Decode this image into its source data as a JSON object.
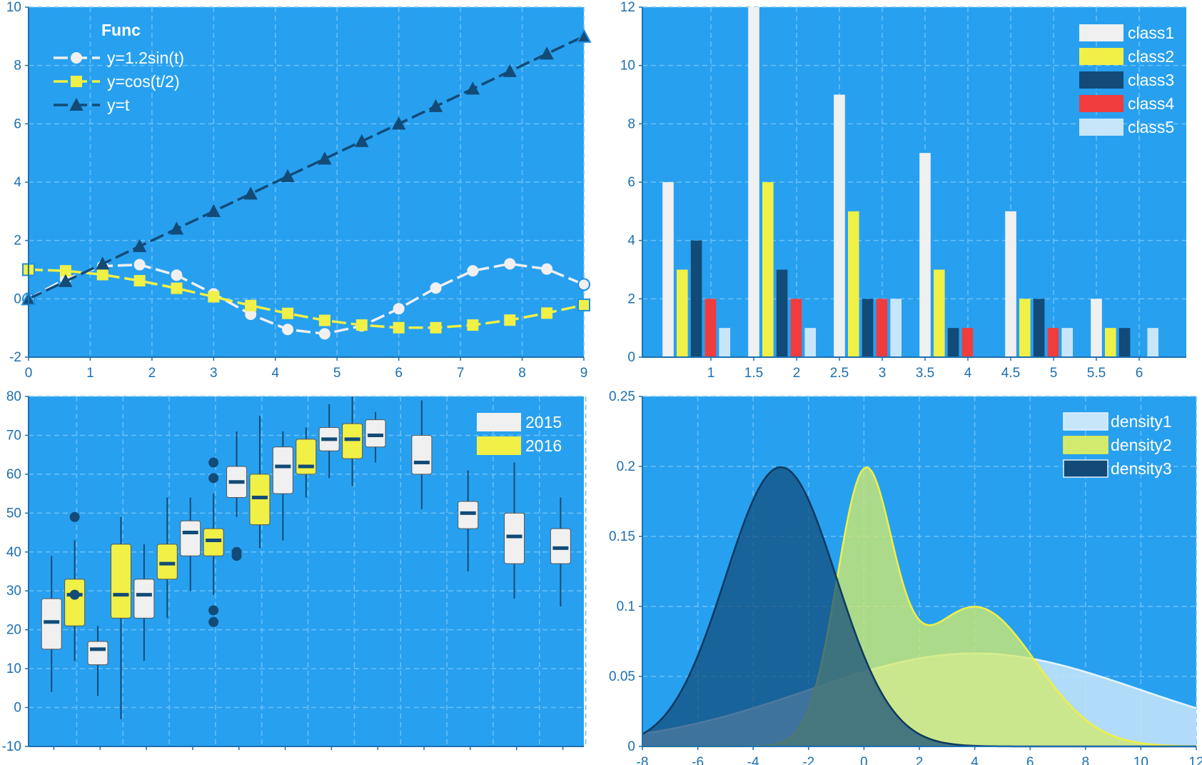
{
  "colors": {
    "panel_bg": "#28a0f0",
    "grid": "#6cc0f5",
    "axis": "#1c6fb0",
    "tick_text": "#1c6fb0",
    "white": "#f0f0f0",
    "yellow": "#f0f046",
    "navy": "#124b78",
    "red": "#f03c3c",
    "lightblue": "#c8e6fa"
  },
  "chart_data": [
    {
      "type": "line",
      "legend_title": "Func",
      "x_ticks": [
        "0",
        "1",
        "2",
        "3",
        "4",
        "5",
        "6",
        "7",
        "8",
        "9"
      ],
      "y_ticks": [
        "-2",
        "0",
        "2",
        "4",
        "6",
        "8",
        "10"
      ],
      "xlim": [
        0,
        9
      ],
      "ylim": [
        -2,
        10
      ],
      "grid": true,
      "legend_position": "top-left",
      "x": [
        0,
        0.6,
        1.2,
        1.8,
        2.4,
        3.0,
        3.6,
        4.2,
        4.8,
        5.4,
        6.0,
        6.6,
        7.2,
        7.8,
        8.4,
        9.0
      ],
      "series": [
        {
          "name": "y=1.2sin(t)",
          "color": "white",
          "marker": "circle",
          "values": [
            0,
            0.68,
            1.12,
            1.17,
            0.81,
            0.17,
            -0.53,
            -1.05,
            -1.2,
            -0.93,
            -0.34,
            0.37,
            0.96,
            1.2,
            1.02,
            0.49
          ]
        },
        {
          "name": "y=cos(t/2)",
          "color": "yellow",
          "marker": "square",
          "values": [
            1.0,
            0.96,
            0.83,
            0.62,
            0.36,
            0.07,
            -0.23,
            -0.5,
            -0.74,
            -0.9,
            -0.99,
            -0.99,
            -0.9,
            -0.73,
            -0.49,
            -0.21
          ]
        },
        {
          "name": "y=t",
          "color": "navy",
          "marker": "triangle",
          "values": [
            0,
            0.6,
            1.2,
            1.8,
            2.4,
            3.0,
            3.6,
            4.2,
            4.8,
            5.4,
            6.0,
            6.6,
            7.2,
            7.8,
            8.4,
            9.0
          ]
        }
      ]
    },
    {
      "type": "bar",
      "x_ticks": [
        "1",
        "1.5",
        "2",
        "2.5",
        "3",
        "3.5",
        "4",
        "4.5",
        "5",
        "5.5",
        "6"
      ],
      "y_ticks": [
        "0",
        "2",
        "4",
        "6",
        "8",
        "10",
        "12"
      ],
      "ylim": [
        0,
        12
      ],
      "grid": true,
      "legend_position": "top-right",
      "categories": [
        1,
        2,
        3,
        4,
        5,
        6
      ],
      "series": [
        {
          "name": "class1",
          "color": "white",
          "values": [
            6,
            12,
            9,
            7,
            5,
            2
          ]
        },
        {
          "name": "class2",
          "color": "yellow",
          "values": [
            3,
            6,
            5,
            3,
            2,
            1
          ]
        },
        {
          "name": "class3",
          "color": "navy",
          "values": [
            4,
            3,
            2,
            1,
            2,
            1
          ]
        },
        {
          "name": "class4",
          "color": "red",
          "values": [
            2,
            2,
            2,
            1,
            1,
            0
          ]
        },
        {
          "name": "class5",
          "color": "lightblue",
          "values": [
            1,
            1,
            2,
            0,
            1,
            1
          ]
        }
      ]
    },
    {
      "type": "box",
      "y_ticks": [
        "-10",
        "0",
        "10",
        "20",
        "30",
        "40",
        "50",
        "60",
        "70",
        "80"
      ],
      "ylim": [
        -10,
        80
      ],
      "grid": true,
      "legend_position": "top-right",
      "x_tick_count": 12,
      "series": [
        {
          "name": "2015",
          "color": "white"
        },
        {
          "name": "2016",
          "color": "yellow"
        }
      ],
      "boxes": [
        {
          "pos": 0.25,
          "series": "2015",
          "whisker_low": 4,
          "q1": 15,
          "median": 22,
          "q3": 28,
          "whisker_high": 39,
          "outliers": []
        },
        {
          "pos": 0.75,
          "series": "2016",
          "whisker_low": 12,
          "q1": 21,
          "median": 29,
          "q3": 33,
          "whisker_high": 43,
          "outliers": [
            29,
            49
          ]
        },
        {
          "pos": 1.25,
          "series": "2015",
          "whisker_low": 3,
          "q1": 11,
          "median": 15,
          "q3": 17,
          "whisker_high": 21,
          "outliers": []
        },
        {
          "pos": 1.75,
          "series": "2016",
          "whisker_low": -3,
          "q1": 23,
          "median": 29,
          "q3": 42,
          "whisker_high": 49,
          "outliers": []
        },
        {
          "pos": 2.25,
          "series": "2015",
          "whisker_low": 12,
          "q1": 23,
          "median": 29,
          "q3": 33,
          "whisker_high": 42,
          "outliers": []
        },
        {
          "pos": 2.75,
          "series": "2016",
          "whisker_low": 23,
          "q1": 33,
          "median": 37,
          "q3": 42,
          "whisker_high": 54,
          "outliers": []
        },
        {
          "pos": 3.25,
          "series": "2015",
          "whisker_low": 30,
          "q1": 39,
          "median": 45,
          "q3": 48,
          "whisker_high": 54,
          "outliers": []
        },
        {
          "pos": 3.75,
          "series": "2016",
          "whisker_low": 29,
          "q1": 39,
          "median": 43,
          "q3": 46,
          "whisker_high": 55,
          "outliers": [
            22,
            25,
            59,
            63
          ]
        },
        {
          "pos": 4.25,
          "series": "2015",
          "whisker_low": 49,
          "q1": 54,
          "median": 58,
          "q3": 62,
          "whisker_high": 71,
          "outliers": [
            39,
            40
          ]
        },
        {
          "pos": 4.75,
          "series": "2016",
          "whisker_low": 41,
          "q1": 47,
          "median": 54,
          "q3": 60,
          "whisker_high": 75,
          "outliers": []
        },
        {
          "pos": 5.25,
          "series": "2015",
          "whisker_low": 43,
          "q1": 55,
          "median": 62,
          "q3": 67,
          "whisker_high": 71,
          "outliers": []
        },
        {
          "pos": 5.75,
          "series": "2016",
          "whisker_low": 54,
          "q1": 60,
          "median": 62,
          "q3": 69,
          "whisker_high": 72,
          "outliers": []
        },
        {
          "pos": 6.25,
          "series": "2015",
          "whisker_low": 59,
          "q1": 66,
          "median": 69,
          "q3": 72,
          "whisker_high": 78,
          "outliers": []
        },
        {
          "pos": 6.75,
          "series": "2016",
          "whisker_low": 57,
          "q1": 64,
          "median": 69,
          "q3": 73,
          "whisker_high": 80,
          "outliers": []
        },
        {
          "pos": 7.25,
          "series": "2015",
          "whisker_low": 63,
          "q1": 67,
          "median": 70,
          "q3": 74,
          "whisker_high": 76,
          "outliers": []
        },
        {
          "pos": 8.25,
          "series": "2015",
          "whisker_low": 51,
          "q1": 60,
          "median": 63,
          "q3": 70,
          "whisker_high": 79,
          "outliers": []
        },
        {
          "pos": 9.25,
          "series": "2015",
          "whisker_low": 35,
          "q1": 46,
          "median": 50,
          "q3": 53,
          "whisker_high": 61,
          "outliers": []
        },
        {
          "pos": 10.25,
          "series": "2015",
          "whisker_low": 28,
          "q1": 37,
          "median": 44,
          "q3": 50,
          "whisker_high": 63,
          "outliers": []
        },
        {
          "pos": 11.25,
          "series": "2015",
          "whisker_low": 26,
          "q1": 37,
          "median": 41,
          "q3": 46,
          "whisker_high": 54,
          "outliers": []
        }
      ]
    },
    {
      "type": "area",
      "x_ticks": [
        "-8",
        "-6",
        "-4",
        "-2",
        "0",
        "2",
        "4",
        "6",
        "8",
        "10",
        "12"
      ],
      "y_ticks": [
        "0",
        "0.05",
        "0.1",
        "0.15",
        "0.2",
        "0.25"
      ],
      "xlim": [
        -8,
        12
      ],
      "ylim": [
        0,
        0.25
      ],
      "grid": true,
      "legend_position": "top-right",
      "series": [
        {
          "name": "density1",
          "color": "lightblue",
          "kind": "normal",
          "components": [
            {
              "weight": 1.0,
              "mean": 4,
              "sd": 6
            }
          ]
        },
        {
          "name": "density2",
          "color": "lime",
          "kind": "normal",
          "components": [
            {
              "weight": 0.45,
              "mean": 0,
              "sd": 1
            },
            {
              "weight": 0.55,
              "mean": 4,
              "sd": 2.2
            }
          ]
        },
        {
          "name": "density3",
          "color": "navy",
          "kind": "normal",
          "components": [
            {
              "weight": 1.0,
              "mean": -3,
              "sd": 2
            }
          ]
        }
      ]
    }
  ]
}
